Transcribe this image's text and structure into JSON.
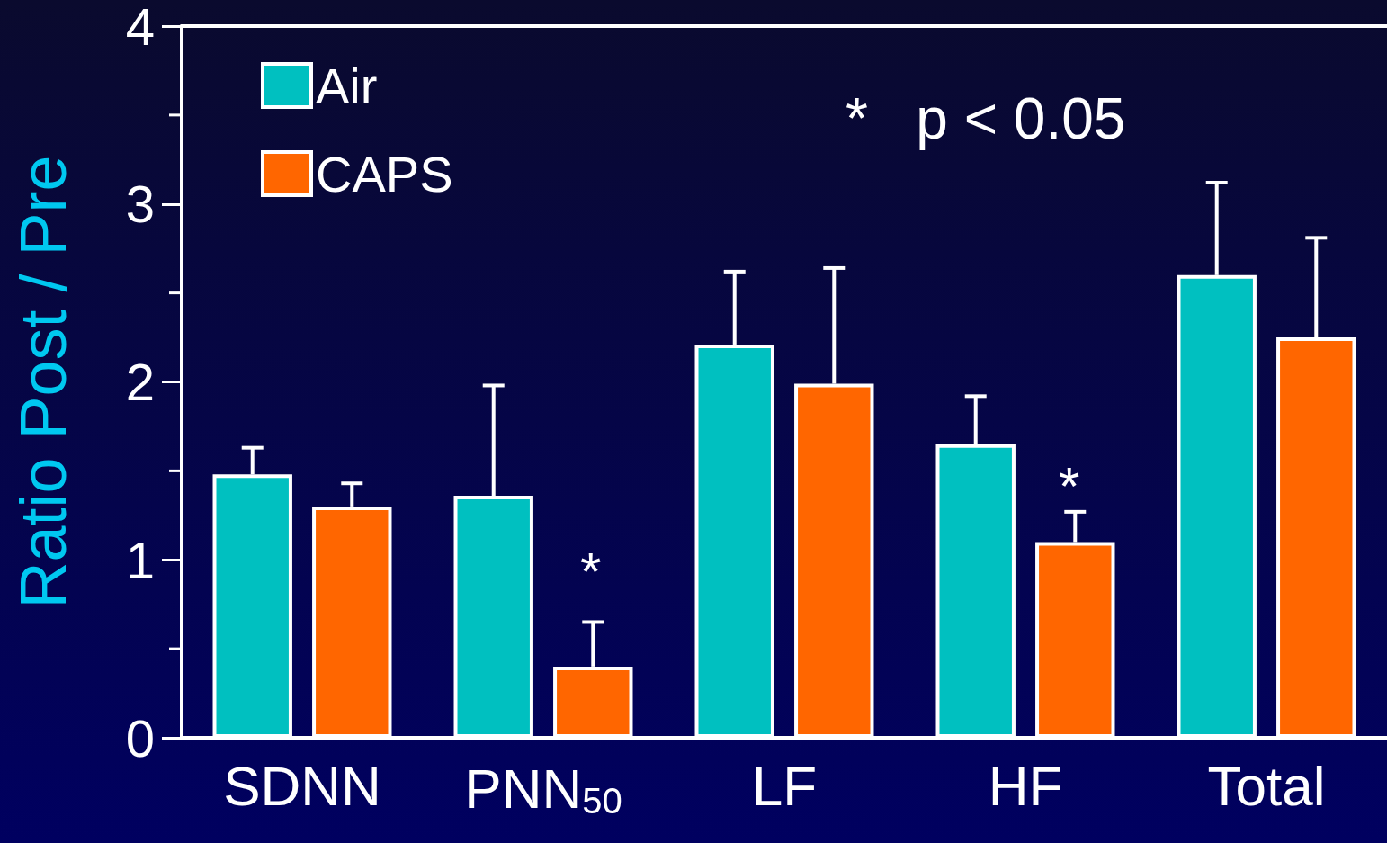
{
  "chart_data": {
    "type": "bar",
    "ylabel": "Ratio Post / Pre",
    "categories": [
      "SDNN",
      "PNN$_{50}$",
      "LF",
      "HF",
      "Total"
    ],
    "series": [
      {
        "name": "Air",
        "color": "#00c0c0",
        "values": [
          1.48,
          1.36,
          2.21,
          1.65,
          2.6
        ],
        "errors": [
          [
            1.48,
            1.63
          ],
          [
            1.36,
            1.98
          ],
          [
            2.21,
            2.62
          ],
          [
            1.65,
            1.92
          ],
          [
            2.6,
            3.12
          ]
        ]
      },
      {
        "name": "CAPS",
        "color": "#ff6600",
        "values": [
          1.3,
          0.4,
          1.99,
          1.1,
          2.25
        ],
        "errors": [
          [
            1.3,
            1.43
          ],
          [
            0.4,
            0.65
          ],
          [
            1.99,
            2.64
          ],
          [
            1.1,
            1.27
          ],
          [
            2.25,
            2.81
          ]
        ]
      }
    ],
    "ylim": [
      0,
      4
    ],
    "yticks": [
      0,
      {
        "value": 0.5,
        "label": null
      },
      1,
      {
        "value": 1.5,
        "label": null
      },
      2,
      {
        "value": 2.5,
        "label": null
      },
      3,
      {
        "value": 3.5,
        "label": null
      },
      4
    ],
    "annotations": [
      "*",
      "*",
      "*   p < 0.05"
    ],
    "legend": "top left",
    "grid": false
  }
}
